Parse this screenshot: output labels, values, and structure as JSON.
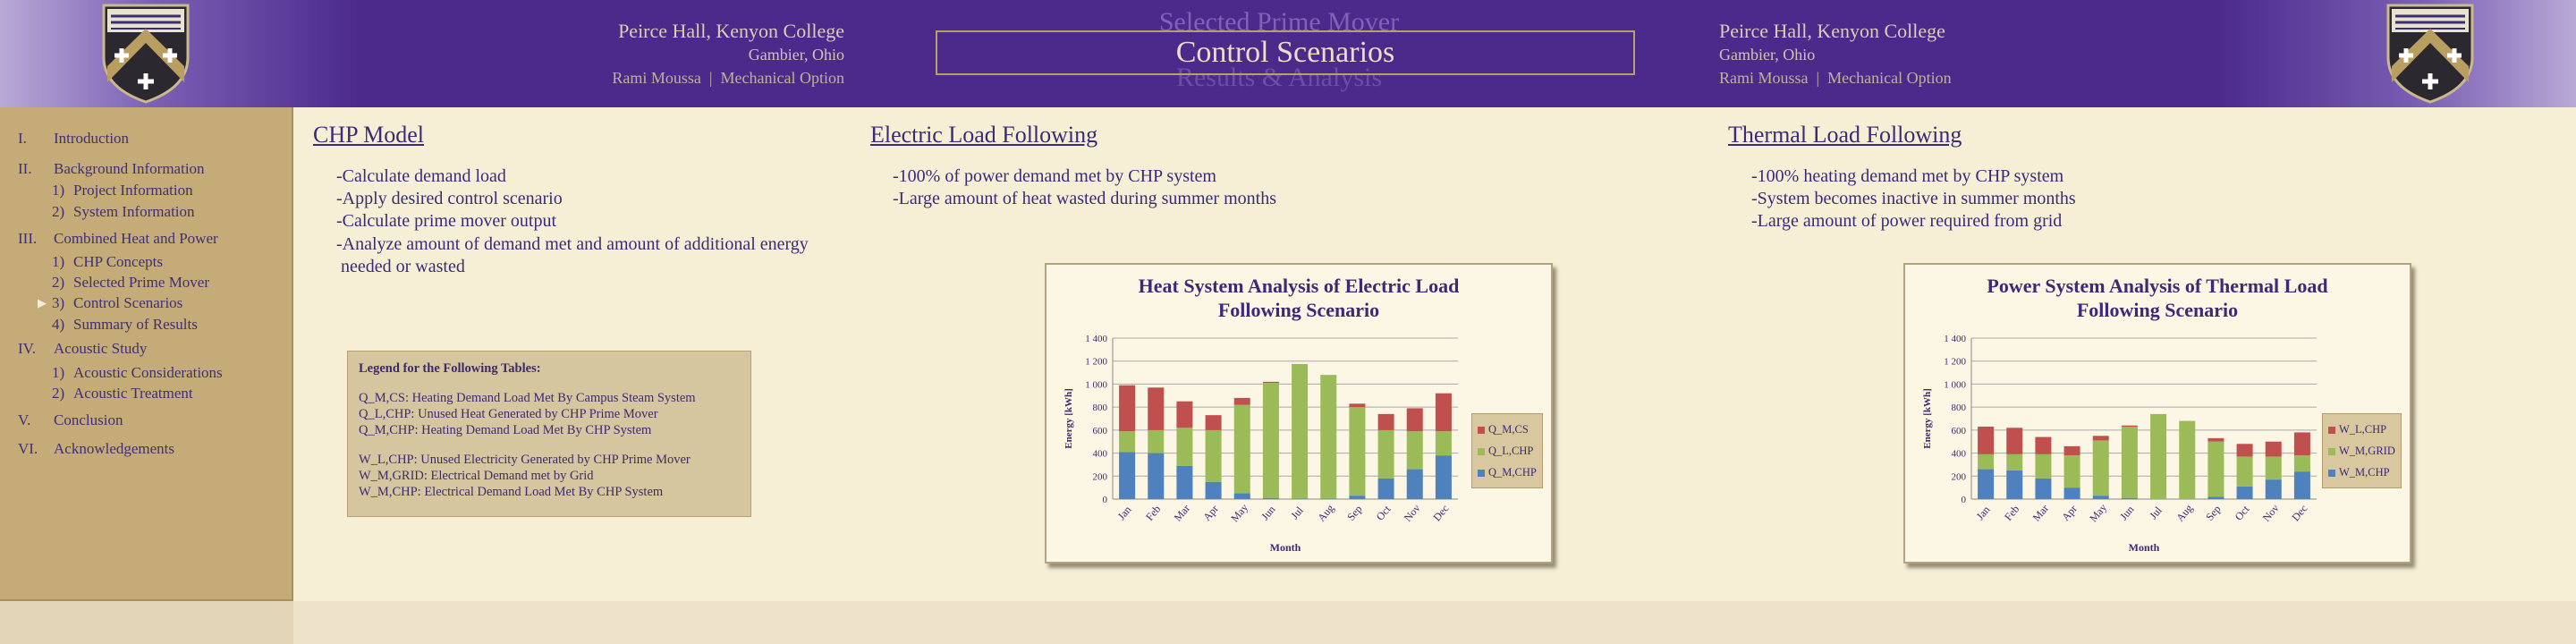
{
  "header": {
    "left_info": [
      "Peirce Hall, Kenyon College",
      "Gambier, Ohio"
    ],
    "right_info": [
      "Peirce Hall, Kenyon College",
      "Gambier, Ohio"
    ],
    "author": "Rami Moussa",
    "option": "Mechanical Option",
    "separator": "|",
    "ghost_top": "Selected Prime Mover",
    "title": "Control Scenarios",
    "ghost_bottom": "Results & Analysis",
    "crest_colors": {
      "shield": "#2b2830",
      "chevron": "#b99e62",
      "band": "#3a2e6b"
    }
  },
  "sidebar": {
    "items": [
      {
        "num": "I.",
        "label": "Introduction"
      },
      {
        "num": "II.",
        "label": "Background Information"
      },
      {
        "num": "1)",
        "label": "Project Information",
        "sub": true
      },
      {
        "num": "2)",
        "label": "System Information",
        "sub": true
      },
      {
        "num": "III.",
        "label": "Combined Heat and Power"
      },
      {
        "num": "1)",
        "label": "CHP Concepts",
        "sub": true
      },
      {
        "num": "2)",
        "label": "Selected Prime Mover",
        "sub": true
      },
      {
        "num": "3)",
        "label": "Control Scenarios",
        "sub": true,
        "current": true
      },
      {
        "num": "4)",
        "label": "Summary of Results",
        "sub": true
      },
      {
        "num": "IV.",
        "label": "Acoustic Study"
      },
      {
        "num": "1)",
        "label": "Acoustic Considerations",
        "sub": true
      },
      {
        "num": "2)",
        "label": "Acoustic Treatment",
        "sub": true
      },
      {
        "num": "V.",
        "label": "Conclusion"
      },
      {
        "num": "VI.",
        "label": "Acknowledgements"
      }
    ],
    "current_marker": "▶"
  },
  "sections": {
    "chp": {
      "title": "CHP Model",
      "bullets": [
        "-Calculate demand load",
        "-Apply desired control scenario",
        "-Calculate prime mover output",
        "-Analyze amount of demand met and amount of additional energy",
        " needed or wasted"
      ]
    },
    "electric": {
      "title": "Electric Load Following",
      "bullets": [
        "-100% of power demand met by CHP system",
        "-Large amount of heat wasted during summer months"
      ]
    },
    "thermal": {
      "title": "Thermal Load Following",
      "bullets": [
        "-100% heating demand met by CHP system",
        "-System becomes inactive in summer months",
        "-Large amount of power required from grid"
      ]
    }
  },
  "legend_box": {
    "title": "Legend for the Following Tables:",
    "group1": [
      "Q_M,CS: Heating Demand Load Met By Campus Steam System",
      "Q_L,CHP: Unused Heat Generated by CHP Prime Mover",
      "Q_M,CHP: Heating Demand Load Met By CHP System"
    ],
    "group2": [
      "W_L,CHP: Unused Electricity Generated by CHP Prime Mover",
      "W_M,GRID: Electrical Demand met by Grid",
      "W_M,CHP: Electrical Demand Load Met By CHP System"
    ]
  },
  "chart_data": [
    {
      "type": "bar",
      "stacked": true,
      "title": "Heat System Analysis of Electric Load Following Scenario",
      "title_lines": [
        "Heat System Analysis of Electric Load",
        "Following Scenario"
      ],
      "xlabel": "Month",
      "ylabel": "Energy [kWh]",
      "ylim": [
        0,
        1400
      ],
      "yticks": [
        0,
        200,
        400,
        600,
        800,
        1000,
        1200,
        1400
      ],
      "ytick_labels": [
        "0",
        "200",
        "400",
        "600",
        "800",
        "1 000",
        "1 200",
        "1 400"
      ],
      "grid": true,
      "legend_position": "right",
      "categories": [
        "Jan",
        "Feb",
        "Mar",
        "Apr",
        "May",
        "Jun",
        "Jul",
        "Aug",
        "Sep",
        "Oct",
        "Nov",
        "Dec"
      ],
      "series": [
        {
          "name": "Q_M,CHP",
          "color": "#4f81bd",
          "values": [
            410,
            400,
            290,
            150,
            50,
            10,
            5,
            5,
            30,
            180,
            260,
            380
          ]
        },
        {
          "name": "Q_L,CHP",
          "color": "#9bbb59",
          "values": [
            180,
            200,
            330,
            450,
            770,
            1000,
            1170,
            1075,
            770,
            420,
            330,
            210
          ]
        },
        {
          "name": "Q_M,CS",
          "color": "#c0504d",
          "values": [
            400,
            370,
            230,
            130,
            60,
            10,
            0,
            0,
            30,
            140,
            200,
            330
          ]
        }
      ]
    },
    {
      "type": "bar",
      "stacked": true,
      "title": "Power System Analysis of Thermal Load Following Scenario",
      "title_lines": [
        "Power System Analysis of Thermal Load",
        "Following Scenario"
      ],
      "xlabel": "Month",
      "ylabel": "Energy [kWh]",
      "ylim": [
        0,
        1400
      ],
      "yticks": [
        0,
        200,
        400,
        600,
        800,
        1000,
        1200,
        1400
      ],
      "ytick_labels": [
        "0",
        "200",
        "400",
        "600",
        "800",
        "1 000",
        "1 200",
        "1 400"
      ],
      "grid": true,
      "legend_position": "right",
      "categories": [
        "Jan",
        "Feb",
        "Mar",
        "Apr",
        "May",
        "Jun",
        "Jul",
        "Aug",
        "Sep",
        "Oct",
        "Nov",
        "Dec"
      ],
      "series": [
        {
          "name": "W_M,CHP",
          "color": "#4f81bd",
          "values": [
            260,
            250,
            180,
            100,
            30,
            10,
            0,
            0,
            20,
            110,
            170,
            240
          ]
        },
        {
          "name": "W_M,GRID",
          "color": "#9bbb59",
          "values": [
            130,
            140,
            210,
            280,
            480,
            620,
            740,
            680,
            480,
            260,
            200,
            140
          ]
        },
        {
          "name": "W_L,CHP",
          "color": "#c0504d",
          "values": [
            240,
            230,
            150,
            80,
            40,
            10,
            0,
            0,
            30,
            110,
            130,
            200
          ]
        }
      ]
    }
  ]
}
